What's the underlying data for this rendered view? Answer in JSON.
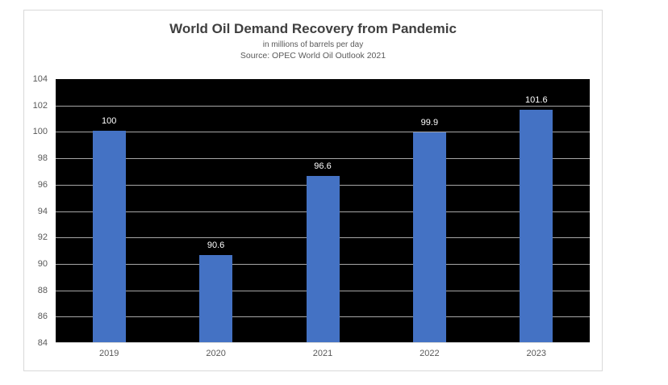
{
  "chart_data": {
    "type": "bar",
    "title": "World Oil Demand Recovery from Pandemic",
    "subtitle": "in millions of barrels per day",
    "source": "Source: OPEC World Oil Outlook 2021",
    "categories": [
      "2019",
      "2020",
      "2021",
      "2022",
      "2023"
    ],
    "values": [
      100,
      90.6,
      96.6,
      99.9,
      101.6
    ],
    "data_labels": [
      "100",
      "90.6",
      "96.6",
      "99.9",
      "101.6"
    ],
    "xlabel": "",
    "ylabel": "",
    "ylim": [
      84,
      104
    ],
    "yticks": [
      84,
      86,
      88,
      90,
      92,
      94,
      96,
      98,
      100,
      102,
      104
    ],
    "grid": true,
    "legend": "none",
    "colors": {
      "bar": "#4472C4",
      "plot_background": "#000000",
      "gridline": "#a6a6a6",
      "data_label": "#ffffff",
      "axis_label": "#595959",
      "title": "#404040",
      "card_border": "#d9d9d9",
      "card_background": "#ffffff"
    }
  }
}
